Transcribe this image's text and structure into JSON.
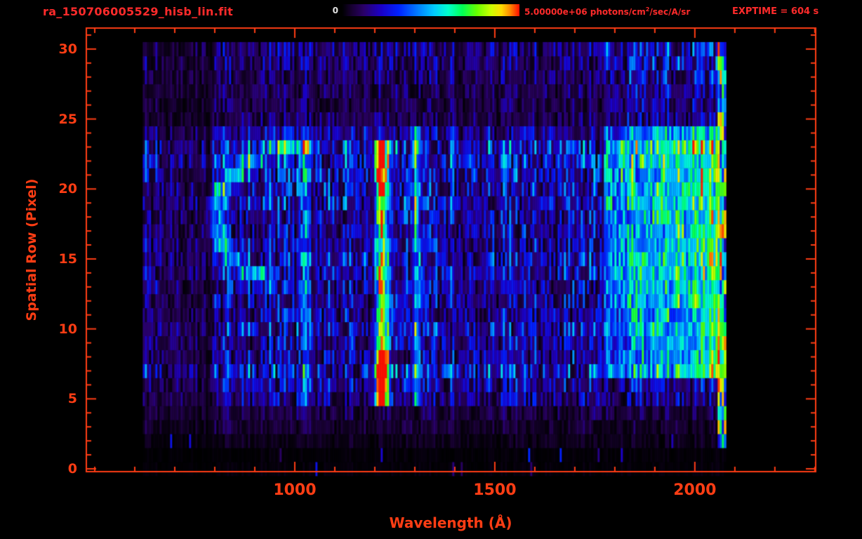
{
  "header": {
    "title": "ra_150706005529_hisb_lin.fit",
    "exptime": "EXPTIME = 604 s",
    "colorbar": {
      "min_label": "0",
      "max_value": "5.00000e+06",
      "max_units_prefix": " photons/cm",
      "max_units_sup": "2",
      "max_units_suffix": "/sec/A/sr"
    }
  },
  "colors": {
    "background": "#000000",
    "axis": "#ff3d14",
    "header_text": "#ff2b2b",
    "colorbar_min_text": "#e2e2e2"
  },
  "chart_data": {
    "type": "heatmap",
    "title": "ra_150706005529_hisb_lin.fit",
    "xlabel": "Wavelength (Å)",
    "ylabel": "Spatial Row (Pixel)",
    "x_ticks": [
      1000,
      1500,
      2000
    ],
    "x_minor_step": 100,
    "y_ticks": [
      0,
      5,
      10,
      15,
      20,
      25,
      30
    ],
    "y_minor_step": 1,
    "x_axis_range": [
      479,
      2302
    ],
    "y_axis_range": [
      -0.2,
      31.5
    ],
    "exposure_time_s": 604,
    "colorbar": {
      "min": 0,
      "max": "5.00000e+06",
      "units": "photons/cm^2/sec/A/sr"
    },
    "data_extent": {
      "lambda": [
        620,
        2078
      ],
      "rows": [
        0,
        30
      ]
    },
    "base_level": 0.2,
    "row_factors": [
      0.05,
      0.05,
      0.15,
      0.3,
      0.4,
      0.75,
      0.9,
      1.25,
      1.0,
      0.9,
      1.1,
      0.95,
      0.9,
      0.95,
      1.05,
      1.1,
      0.95,
      0.95,
      1.0,
      1.15,
      1.1,
      1.15,
      1.25,
      1.35,
      0.85,
      0.5,
      0.45,
      0.5,
      0.6,
      0.65,
      0.7
    ],
    "features": {
      "lyman_alpha": {
        "lambda": 1216,
        "sigma": 10,
        "rows": [
          4.5,
          24
        ],
        "row_bands": [
          [
            4.5,
            9,
            1.15
          ],
          [
            9,
            19.5,
            0.68
          ],
          [
            19.5,
            24,
            1.0
          ]
        ]
      },
      "oi_1302": {
        "lambda": 1302,
        "sigma": 6,
        "rows": [
          4.5,
          24
        ],
        "amp": 0.35
      },
      "lyman_beta": {
        "lambda": 1025,
        "sigma": 6,
        "rows": [
          4.5,
          24
        ],
        "amp": 0.22
      },
      "arc": {
        "center_lambda": 1000,
        "center_row": 18,
        "radius_lambda": 200,
        "radius_rows": 4.8,
        "amp": 0.32
      },
      "continuum": {
        "lambda_range": [
          1770,
          2060
        ],
        "rows": [
          7,
          24.5
        ],
        "amp_range": [
          0.18,
          0.43
        ],
        "bright_rows": [
          12,
          23
        ],
        "bright_extra": 0.08
      },
      "detector_edge": {
        "lambda_range": [
          2055,
          2078
        ],
        "rows": [
          2,
          30
        ],
        "amp_range": [
          0.15,
          1.0
        ]
      }
    },
    "colormap": [
      [
        0.0,
        "#000000"
      ],
      [
        0.05,
        "#16002e"
      ],
      [
        0.12,
        "#2a0066"
      ],
      [
        0.22,
        "#1b00c8"
      ],
      [
        0.32,
        "#0022ff"
      ],
      [
        0.42,
        "#0077ff"
      ],
      [
        0.52,
        "#00ccff"
      ],
      [
        0.6,
        "#00ffcc"
      ],
      [
        0.68,
        "#00ff55"
      ],
      [
        0.76,
        "#66ff00"
      ],
      [
        0.84,
        "#ccff00"
      ],
      [
        0.9,
        "#ffdd00"
      ],
      [
        0.95,
        "#ff8800"
      ],
      [
        1.0,
        "#ff1100"
      ]
    ]
  }
}
